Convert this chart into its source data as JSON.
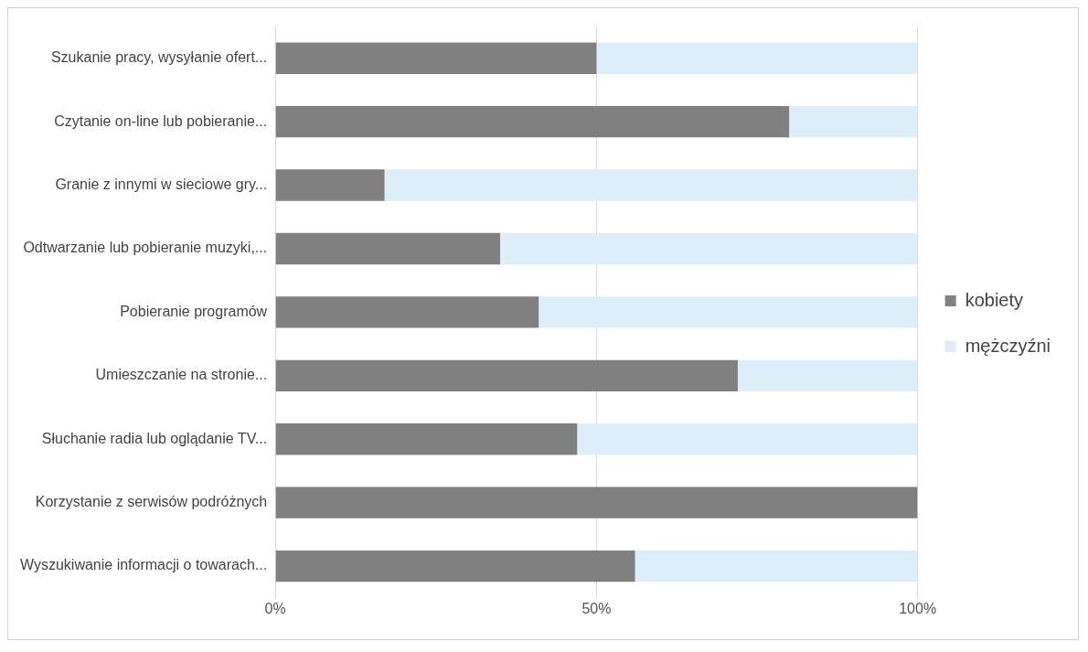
{
  "chart_data": {
    "type": "bar",
    "orientation": "horizontal",
    "stacked": true,
    "categories": [
      "Szukanie pracy, wysyłanie ofert...",
      "Czytanie on-line lub pobieranie...",
      "Granie z innymi w sieciowe gry...",
      "Odtwarzanie lub pobieranie muzyki,...",
      "Pobieranie programów",
      "Umieszczanie na stronie...",
      "Słuchanie radia lub oglądanie TV...",
      "Korzystanie z serwisów podróżnych",
      "Wyszukiwanie informacji o towarach..."
    ],
    "series": [
      {
        "name": "kobiety",
        "color": "#808080",
        "values": [
          50,
          80,
          17,
          35,
          41,
          72,
          47,
          100,
          56
        ]
      },
      {
        "name": "mężczyźni",
        "color": "#ddeef8",
        "values": [
          50,
          20,
          83,
          65,
          59,
          28,
          53,
          0,
          44
        ]
      }
    ],
    "xlim": [
      0,
      100
    ],
    "xticks": [
      {
        "value": 0,
        "label": "0%"
      },
      {
        "value": 50,
        "label": "50%"
      },
      {
        "value": 100,
        "label": "100%"
      }
    ],
    "grid": "x",
    "legend": "right"
  }
}
